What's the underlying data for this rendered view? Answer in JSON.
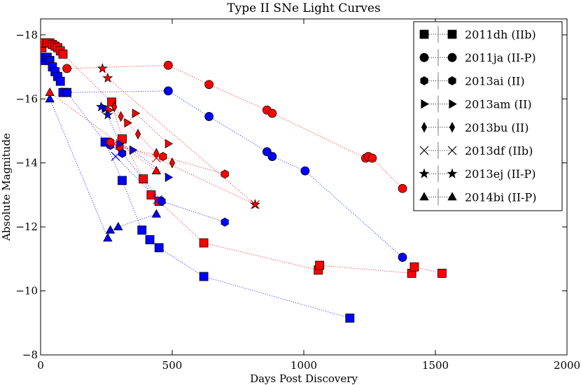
{
  "chart_data": {
    "type": "scatter",
    "title": "Type II SNe Light Curves",
    "xlabel": "Days Post Discovery",
    "ylabel": "Absolute Magnitude",
    "xlim": [
      0,
      2000
    ],
    "ylim": [
      -8,
      -18.5
    ],
    "xticks": [
      0,
      500,
      1000,
      1500,
      2000
    ],
    "yticks": [
      -8,
      -10,
      -12,
      -14,
      -16,
      -18
    ],
    "xtick_labels": [
      "0",
      "500",
      "1000",
      "1500",
      "2000"
    ],
    "ytick_labels": [
      "−8",
      "−10",
      "−12",
      "−14",
      "−16",
      "−18"
    ],
    "legend_position": "top-right",
    "band_colors": {
      "red": "#ff0000",
      "blue": "#0000ff"
    },
    "series": [
      {
        "name": "2011dh (IIb)",
        "legend": "2011dh (IIb)",
        "marker": "square",
        "red": [
          [
            5,
            -17.6
          ],
          [
            15,
            -17.75
          ],
          [
            25,
            -17.75
          ],
          [
            35,
            -17.75
          ],
          [
            45,
            -17.7
          ],
          [
            55,
            -17.65
          ],
          [
            65,
            -17.6
          ],
          [
            75,
            -17.5
          ],
          [
            85,
            -17.4
          ],
          [
            270,
            -15.9
          ],
          [
            310,
            -14.75
          ],
          [
            390,
            -13.5
          ],
          [
            420,
            -13.0
          ],
          [
            450,
            -12.8
          ],
          [
            620,
            -11.5
          ],
          [
            1055,
            -10.65
          ],
          [
            1060,
            -10.8
          ],
          [
            1410,
            -10.55
          ],
          [
            1420,
            -10.75
          ],
          [
            1525,
            -10.55
          ]
        ],
        "blue": [
          [
            5,
            -17.2
          ],
          [
            15,
            -17.3
          ],
          [
            25,
            -17.3
          ],
          [
            35,
            -17.2
          ],
          [
            45,
            -17.0
          ],
          [
            55,
            -16.85
          ],
          [
            65,
            -16.7
          ],
          [
            75,
            -16.55
          ],
          [
            85,
            -16.2
          ],
          [
            100,
            -16.2
          ],
          [
            245,
            -14.65
          ],
          [
            310,
            -13.45
          ],
          [
            385,
            -11.9
          ],
          [
            415,
            -11.6
          ],
          [
            450,
            -11.35
          ],
          [
            620,
            -10.45
          ],
          [
            1175,
            -9.15
          ]
        ]
      },
      {
        "name": "2011ja (II-P)",
        "legend": "2011ja (II-P)",
        "marker": "circle",
        "red": [
          [
            100,
            -16.95
          ],
          [
            485,
            -17.05
          ],
          [
            640,
            -16.45
          ],
          [
            860,
            -15.65
          ],
          [
            880,
            -15.55
          ],
          [
            1235,
            -14.15
          ],
          [
            1245,
            -14.2
          ],
          [
            1260,
            -14.15
          ],
          [
            1375,
            -13.2
          ]
        ],
        "blue": [
          [
            100,
            -16.2
          ],
          [
            485,
            -16.25
          ],
          [
            640,
            -15.45
          ],
          [
            860,
            -14.35
          ],
          [
            880,
            -14.2
          ],
          [
            1005,
            -13.75
          ],
          [
            1375,
            -11.05
          ]
        ]
      },
      {
        "name": "2013ai (II)",
        "legend": "2013ai (II)",
        "marker": "hexagon",
        "red": [
          [
            265,
            -14.65
          ],
          [
            300,
            -14.5
          ],
          [
            465,
            -14.2
          ],
          [
            700,
            -13.65
          ]
        ],
        "blue": [
          [
            265,
            -14.55
          ],
          [
            310,
            -14.3
          ],
          [
            460,
            -12.8
          ],
          [
            700,
            -12.15
          ]
        ]
      },
      {
        "name": "2013am (II)",
        "legend": "2013am (II)",
        "marker": "triangle-right",
        "red": [
          [
            260,
            -15.65
          ],
          [
            330,
            -15.25
          ],
          [
            360,
            -15.55
          ],
          [
            485,
            -14.6
          ]
        ],
        "blue": [
          [
            245,
            -15.7
          ],
          [
            300,
            -14.6
          ],
          [
            350,
            -14.4
          ],
          [
            485,
            -13.55
          ]
        ]
      },
      {
        "name": "2013bu (II)",
        "legend": "2013bu (II)",
        "marker": "diamond",
        "red": [
          [
            280,
            -15.75
          ],
          [
            305,
            -15.45
          ],
          [
            370,
            -14.9
          ],
          [
            440,
            -14.3
          ],
          [
            500,
            -14.0
          ]
        ],
        "blue": []
      },
      {
        "name": "2013df (IIb)",
        "legend": "2013df (IIb)",
        "marker": "x",
        "red": [
          [
            280,
            -14.6
          ],
          [
            440,
            -14.15
          ],
          [
            815,
            -12.7
          ]
        ],
        "blue": [
          [
            285,
            -14.2
          ],
          [
            445,
            -12.85
          ]
        ]
      },
      {
        "name": "2013ej (II-P)",
        "legend": "2013ej (II-P)",
        "marker": "star",
        "red": [
          [
            235,
            -16.95
          ],
          [
            255,
            -16.65
          ],
          [
            815,
            -12.7
          ]
        ],
        "blue": [
          [
            230,
            -15.75
          ],
          [
            255,
            -15.5
          ]
        ]
      },
      {
        "name": "2014bi (II-P)",
        "legend": "2014bi (II-P)",
        "marker": "triangle-up",
        "red": [
          [
            35,
            -16.2
          ],
          [
            440,
            -13.75
          ]
        ],
        "blue": [
          [
            35,
            -16.0
          ],
          [
            255,
            -11.65
          ],
          [
            265,
            -11.9
          ],
          [
            295,
            -12.0
          ],
          [
            440,
            -12.4
          ]
        ]
      }
    ]
  }
}
